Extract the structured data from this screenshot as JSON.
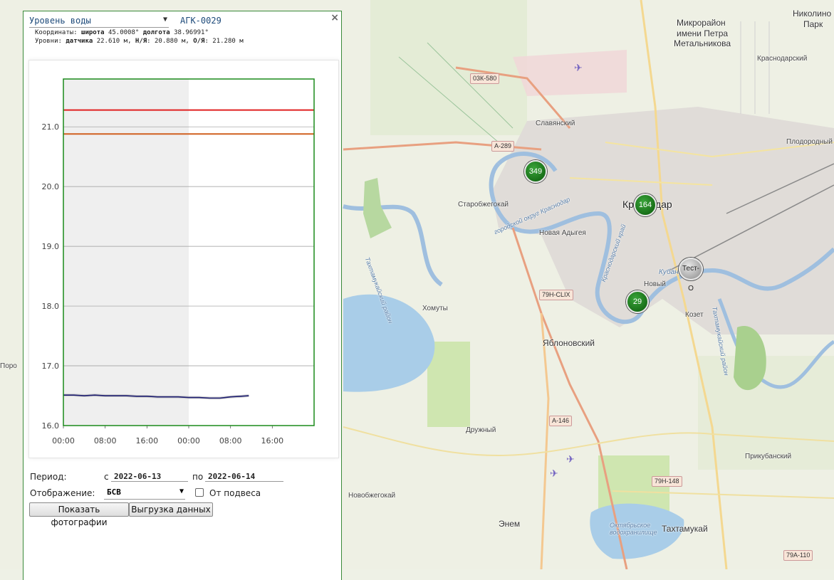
{
  "map": {
    "labels": [
      {
        "text": "Николино",
        "cls": "big"
      },
      {
        "text": "Парк",
        "cls": "big"
      },
      {
        "text": "Микрорайон",
        "cls": "big"
      },
      {
        "text": "имени Петра",
        "cls": "big"
      },
      {
        "text": "Метальникова",
        "cls": "big"
      },
      {
        "text": "Краснодарский",
        "cls": ""
      },
      {
        "text": "Плодородный",
        "cls": ""
      },
      {
        "text": "Славянский",
        "cls": ""
      },
      {
        "text": "Краснодар",
        "cls": "city"
      },
      {
        "text": "Старобжегокай",
        "cls": ""
      },
      {
        "text": "Новая Адыгея",
        "cls": ""
      },
      {
        "text": "Новый",
        "cls": ""
      },
      {
        "text": "Козет",
        "cls": ""
      },
      {
        "text": "Хомуты",
        "cls": ""
      },
      {
        "text": "Яблоновский",
        "cls": "big"
      },
      {
        "text": "Дружный",
        "cls": ""
      },
      {
        "text": "Прикубанский",
        "cls": ""
      },
      {
        "text": "Новобжегокай",
        "cls": ""
      },
      {
        "text": "Энем",
        "cls": "big"
      },
      {
        "text": "Тахтамукай",
        "cls": "big"
      },
      {
        "text": "Октябрьское водохранилище",
        "cls": "water"
      },
      {
        "text": "Кубань",
        "cls": "water"
      },
      {
        "text": "Поро",
        "cls": ""
      },
      {
        "text": "Тахтамукайский район",
        "cls": "water"
      },
      {
        "text": "городской округ Краснодар",
        "cls": "water"
      },
      {
        "text": "Краснодарский край",
        "cls": "water"
      },
      {
        "text": "Тахтамукайский район",
        "cls": "water"
      }
    ],
    "roads": [
      "03К-580",
      "А-289",
      "79Н-CLIX",
      "А-146",
      "79Н-148",
      "79А-110"
    ],
    "markers": [
      {
        "label": "349",
        "kind": "green"
      },
      {
        "label": "164",
        "kind": "green"
      },
      {
        "label": "29",
        "kind": "green"
      },
      {
        "label": "Тест-О",
        "kind": "grey"
      }
    ]
  },
  "panel": {
    "parameter": "Уровень воды",
    "station": "АГК-0029",
    "coords_prefix": "Координаты: ",
    "lat_label": "широта",
    "lat_value": " 45.0008°",
    "lon_label": " долгота",
    "lon_value": " 38.96991°",
    "levels_prefix": "Уровни: ",
    "sensor_label": "датчика",
    "sensor_value": " 22.610 м,",
    "nya_label": " Н/Я",
    "nya_value": ": 20.880 м,",
    "oya_label": " О/Я",
    "oya_value": ": 21.280 м",
    "period_label": "Период:",
    "from_label": "с",
    "from_date": "2022-06-13",
    "to_label": "по",
    "to_date": "2022-06-14",
    "display_label": "Отображение:",
    "display_value": "БСВ",
    "suspension_label": "От подвеса",
    "photos_button": "Показать фотографии",
    "export_button": "Выгрузка данных",
    "close_glyph": "×"
  },
  "chart_data": {
    "type": "line",
    "ylim": [
      16.0,
      21.8
    ],
    "yticks": [
      "16.0",
      "17.0",
      "18.0",
      "19.0",
      "20.0",
      "21.0"
    ],
    "xticks": [
      "00:00",
      "08:00",
      "16:00",
      "00:00",
      "08:00",
      "16:00"
    ],
    "x_hours_range": [
      0,
      48
    ],
    "thresholds": [
      {
        "name": "О/Я",
        "value": 21.28,
        "color": "#e02020"
      },
      {
        "name": "Н/Я",
        "value": 20.88,
        "color": "#d06020"
      }
    ],
    "series": [
      {
        "color": "#1a1a6e",
        "x": [
          0,
          2,
          4,
          6,
          8,
          10,
          12,
          14,
          16,
          18,
          20,
          22,
          24,
          26,
          28,
          30,
          31,
          32,
          34,
          35.5
        ],
        "y": [
          16.51,
          16.51,
          16.5,
          16.51,
          16.5,
          16.5,
          16.5,
          16.49,
          16.49,
          16.48,
          16.48,
          16.48,
          16.47,
          16.47,
          16.46,
          16.46,
          16.47,
          16.48,
          16.49,
          16.5
        ]
      }
    ],
    "shaded_day_hours": [
      0,
      24
    ],
    "grid": true
  }
}
